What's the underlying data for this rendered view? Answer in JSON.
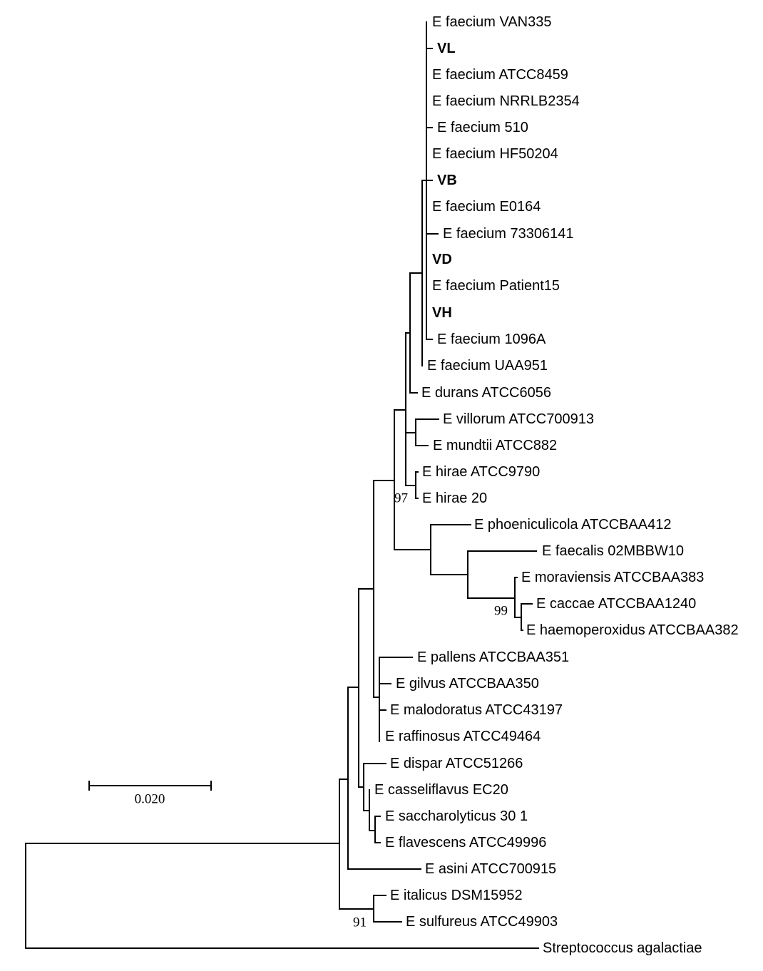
{
  "leaves": [
    {
      "label": "E faecium VAN335",
      "bold": false
    },
    {
      "label": "VL",
      "bold": true
    },
    {
      "label": "E faecium ATCC8459",
      "bold": false
    },
    {
      "label": "E faecium NRRLB2354",
      "bold": false
    },
    {
      "label": "E faecium 510",
      "bold": false
    },
    {
      "label": "E faecium HF50204",
      "bold": false
    },
    {
      "label": "VB",
      "bold": true
    },
    {
      "label": "E faecium E0164",
      "bold": false
    },
    {
      "label": "E faecium 73306141",
      "bold": false
    },
    {
      "label": "VD",
      "bold": true
    },
    {
      "label": "E faecium Patient15",
      "bold": false
    },
    {
      "label": "VH",
      "bold": true
    },
    {
      "label": "E faecium 1096A",
      "bold": false
    },
    {
      "label": "E faecium UAA951",
      "bold": false
    },
    {
      "label": "E durans ATCC6056",
      "bold": false
    },
    {
      "label": "E villorum ATCC700913",
      "bold": false
    },
    {
      "label": "E mundtii ATCC882",
      "bold": false
    },
    {
      "label": "E hirae ATCC9790",
      "bold": false
    },
    {
      "label": "E hirae 20",
      "bold": false
    },
    {
      "label": "E phoeniculicola ATCCBAA412",
      "bold": false
    },
    {
      "label": "E faecalis 02MBBW10",
      "bold": false
    },
    {
      "label": "E moraviensis ATCCBAA383",
      "bold": false
    },
    {
      "label": "E caccae ATCCBAA1240",
      "bold": false
    },
    {
      "label": "E haemoperoxidus ATCCBAA382",
      "bold": false
    },
    {
      "label": "E pallens ATCCBAA351",
      "bold": false
    },
    {
      "label": "E gilvus ATCCBAA350",
      "bold": false
    },
    {
      "label": "E malodoratus ATCC43197",
      "bold": false
    },
    {
      "label": "E raffinosus ATCC49464",
      "bold": false
    },
    {
      "label": "E dispar ATCC51266",
      "bold": false
    },
    {
      "label": "E casseliflavus EC20",
      "bold": false
    },
    {
      "label": "E saccharolyticus 30 1",
      "bold": false
    },
    {
      "label": "E flavescens ATCC49996",
      "bold": false
    },
    {
      "label": "E asini ATCC700915",
      "bold": false
    },
    {
      "label": "E italicus DSM15952",
      "bold": false
    },
    {
      "label": "E sulfureus ATCC49903",
      "bold": false
    },
    {
      "label": "Streptococcus agalactiae",
      "bold": false
    }
  ],
  "bootstrap": [
    "97",
    "99",
    "91"
  ],
  "scale_bar": {
    "label": "0.020",
    "value": 0.02
  },
  "colors": {
    "line": "#000000",
    "text": "#000000"
  }
}
